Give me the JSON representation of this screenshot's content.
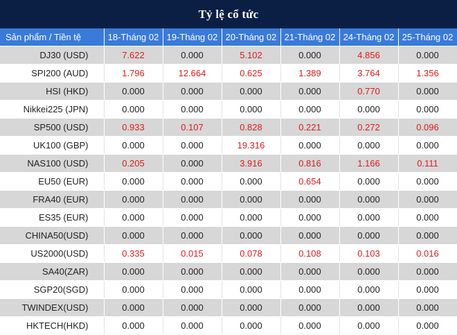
{
  "title": "Tỷ lệ cổ tức",
  "colors": {
    "header_bg": "#0b1f45",
    "column_header_bg": "#3a7ad9",
    "row_shade": "#d7d7d7",
    "positive_value": "#e01b1b",
    "zero_value": "#222222"
  },
  "columns": [
    "Sản phẩm / Tiền tệ",
    "18-Tháng 02",
    "19-Tháng 02",
    "20-Tháng 02",
    "21-Tháng 02",
    "24-Tháng 02",
    "25-Tháng 02"
  ],
  "rows": [
    {
      "product": "DJ30 (USD)",
      "values": [
        "7.622",
        "0.000",
        "5.102",
        "0.000",
        "4.856",
        "0.000"
      ]
    },
    {
      "product": "SPI200 (AUD)",
      "values": [
        "1.796",
        "12.664",
        "0.625",
        "1.389",
        "3.764",
        "1.356"
      ]
    },
    {
      "product": "HSI (HKD)",
      "values": [
        "0.000",
        "0.000",
        "0.000",
        "0.000",
        "0.770",
        "0.000"
      ]
    },
    {
      "product": "Nikkei225 (JPN)",
      "values": [
        "0.000",
        "0.000",
        "0.000",
        "0.000",
        "0.000",
        "0.000"
      ]
    },
    {
      "product": "SP500 (USD)",
      "values": [
        "0.933",
        "0.107",
        "0.828",
        "0.221",
        "0.272",
        "0.096"
      ]
    },
    {
      "product": "UK100 (GBP)",
      "values": [
        "0.000",
        "0.000",
        "19.316",
        "0.000",
        "0.000",
        "0.000"
      ]
    },
    {
      "product": "NAS100 (USD)",
      "values": [
        "0.205",
        "0.000",
        "3.916",
        "0.816",
        "1.166",
        "0.111"
      ]
    },
    {
      "product": "EU50 (EUR)",
      "values": [
        "0.000",
        "0.000",
        "0.000",
        "0.654",
        "0.000",
        "0.000"
      ]
    },
    {
      "product": "FRA40 (EUR)",
      "values": [
        "0.000",
        "0.000",
        "0.000",
        "0.000",
        "0.000",
        "0.000"
      ]
    },
    {
      "product": "ES35 (EUR)",
      "values": [
        "0.000",
        "0.000",
        "0.000",
        "0.000",
        "0.000",
        "0.000"
      ]
    },
    {
      "product": "CHINA50(USD)",
      "values": [
        "0.000",
        "0.000",
        "0.000",
        "0.000",
        "0.000",
        "0.000"
      ]
    },
    {
      "product": "US2000(USD)",
      "values": [
        "0.335",
        "0.015",
        "0.078",
        "0.108",
        "0.103",
        "0.016"
      ]
    },
    {
      "product": "SA40(ZAR)",
      "values": [
        "0.000",
        "0.000",
        "0.000",
        "0.000",
        "0.000",
        "0.000"
      ]
    },
    {
      "product": "SGP20(SGD)",
      "values": [
        "0.000",
        "0.000",
        "0.000",
        "0.000",
        "0.000",
        "0.000"
      ]
    },
    {
      "product": "TWINDEX(USD)",
      "values": [
        "0.000",
        "0.000",
        "0.000",
        "0.000",
        "0.000",
        "0.000"
      ]
    },
    {
      "product": "HKTECH(HKD)",
      "values": [
        "0.000",
        "0.000",
        "0.000",
        "0.000",
        "0.000",
        "0.000"
      ]
    }
  ]
}
